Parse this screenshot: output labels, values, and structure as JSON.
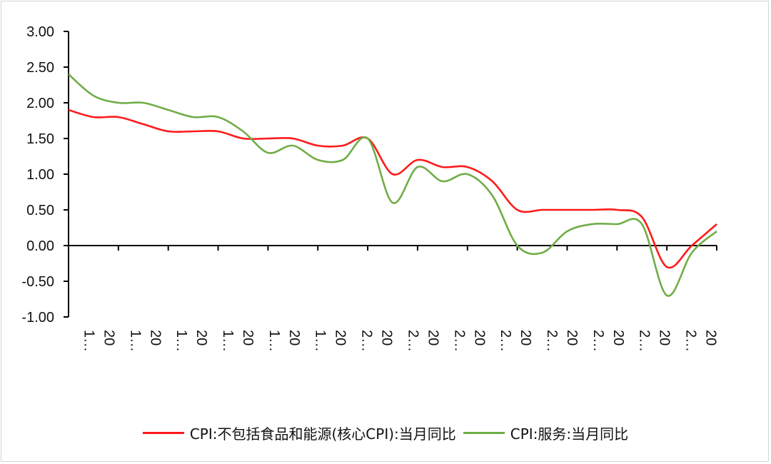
{
  "chart_data": {
    "type": "line",
    "title": "",
    "xlabel": "",
    "ylabel": "",
    "ylim": [
      -1.0,
      3.0
    ],
    "yticks": [
      "3.00",
      "2.50",
      "2.00",
      "1.50",
      "1.00",
      "0.50",
      "0.00",
      "-0.50",
      "-1.00"
    ],
    "xtick_labels": [
      [
        "1…",
        "20"
      ],
      [
        "1…",
        "20"
      ],
      [
        "1…",
        "20"
      ],
      [
        "1…",
        "20"
      ],
      [
        "1…",
        "20"
      ],
      [
        "1…",
        "20"
      ],
      [
        "2…",
        "20"
      ],
      [
        "2…",
        "20"
      ],
      [
        "2…",
        "20"
      ],
      [
        "2…",
        "20"
      ],
      [
        "2…",
        "20"
      ],
      [
        "2…",
        "20"
      ],
      [
        "2…",
        "20"
      ],
      [
        "2…",
        "20"
      ]
    ],
    "grid": false,
    "legend_position": "bottom",
    "n_points": 27,
    "series": [
      {
        "name": "CPI:不包括食品和能源(核心CPI):当月同比",
        "color": "#ff1a1a",
        "values": [
          1.9,
          1.8,
          1.8,
          1.7,
          1.6,
          1.6,
          1.6,
          1.5,
          1.5,
          1.5,
          1.4,
          1.4,
          1.5,
          1.0,
          1.2,
          1.1,
          1.1,
          0.9,
          0.5,
          0.5,
          0.5,
          0.5,
          0.5,
          0.4,
          -0.3,
          0.0,
          0.3
        ]
      },
      {
        "name": "CPI:服务:当月同比",
        "color": "#70ad47",
        "values": [
          2.4,
          2.1,
          2.0,
          2.0,
          1.9,
          1.8,
          1.8,
          1.6,
          1.3,
          1.4,
          1.2,
          1.2,
          1.5,
          0.6,
          1.1,
          0.9,
          1.0,
          0.7,
          0.0,
          -0.1,
          0.2,
          0.3,
          0.3,
          0.3,
          -0.7,
          -0.1,
          0.2
        ]
      }
    ]
  }
}
